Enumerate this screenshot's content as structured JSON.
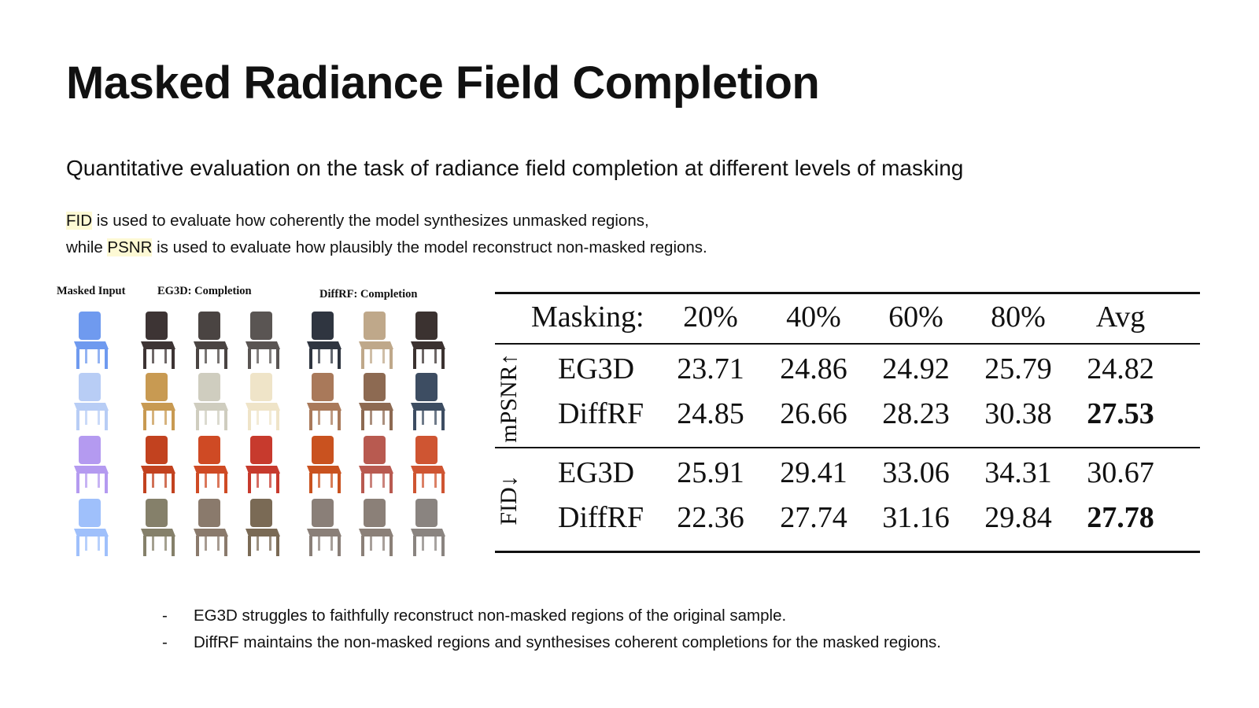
{
  "slide": {
    "title": "Masked Radiance Field Completion",
    "subtitle": "Quantitative evaluation on the task of radiance field completion at different levels of masking",
    "description": {
      "line1_term": "FID",
      "line1_rest": " is used to evaluate how coherently the model synthesizes unmasked regions,",
      "line2_pre": "while ",
      "line2_term": "PSNR",
      "line2_rest": " is used to evaluate how plausibly the model reconstruct non-masked regions.",
      "highlight_color": "#fdf9d4"
    }
  },
  "figure": {
    "labels": {
      "masked_input": "Masked Input",
      "eg3d": "EG3D: Completion",
      "diffrf": "DiffRF: Completion"
    },
    "rows": [
      [
        "#6f9aef",
        "#3d3434",
        "#4a4442",
        "#5a5553",
        "#2f3540",
        "#bfa88a",
        "#3b3230"
      ],
      [
        "#b8cdf5",
        "#c89a52",
        "#cfcdbf",
        "#efe4c8",
        "#a9795a",
        "#8d6a52",
        "#3d4d62"
      ],
      [
        "#b49af0",
        "#c2421f",
        "#cf4a24",
        "#c73a2d",
        "#c9521f",
        "#b85a50",
        "#cf5532"
      ],
      [
        "#9fc0fb",
        "#85806a",
        "#8a7a6c",
        "#7a6a55",
        "#8a7f78",
        "#8b8078",
        "#8a8480"
      ]
    ]
  },
  "table": {
    "header": {
      "masking": "Masking:",
      "cols": [
        "20%",
        "40%",
        "60%",
        "80%",
        "Avg"
      ]
    },
    "groups": [
      {
        "metric": "mPSNR↑",
        "rows": [
          {
            "method": "EG3D",
            "values": [
              "23.71",
              "24.86",
              "24.92",
              "25.79",
              "24.82"
            ],
            "best_avg": false
          },
          {
            "method": "DiffRF",
            "values": [
              "24.85",
              "26.66",
              "28.23",
              "30.38",
              "27.53"
            ],
            "best_avg": true
          }
        ]
      },
      {
        "metric": "FID↓",
        "rows": [
          {
            "method": "EG3D",
            "values": [
              "25.91",
              "29.41",
              "33.06",
              "34.31",
              "30.67"
            ],
            "best_avg": false
          },
          {
            "method": "DiffRF",
            "values": [
              "22.36",
              "27.74",
              "31.16",
              "29.84",
              "27.78"
            ],
            "best_avg": true
          }
        ]
      }
    ]
  },
  "bullets": [
    {
      "dash": "-",
      "text": "EG3D struggles to faithfully reconstruct non-masked regions of the original sample."
    },
    {
      "dash": "-",
      "text": "DiffRF maintains the non-masked regions and synthesises coherent completions for the masked regions."
    }
  ]
}
